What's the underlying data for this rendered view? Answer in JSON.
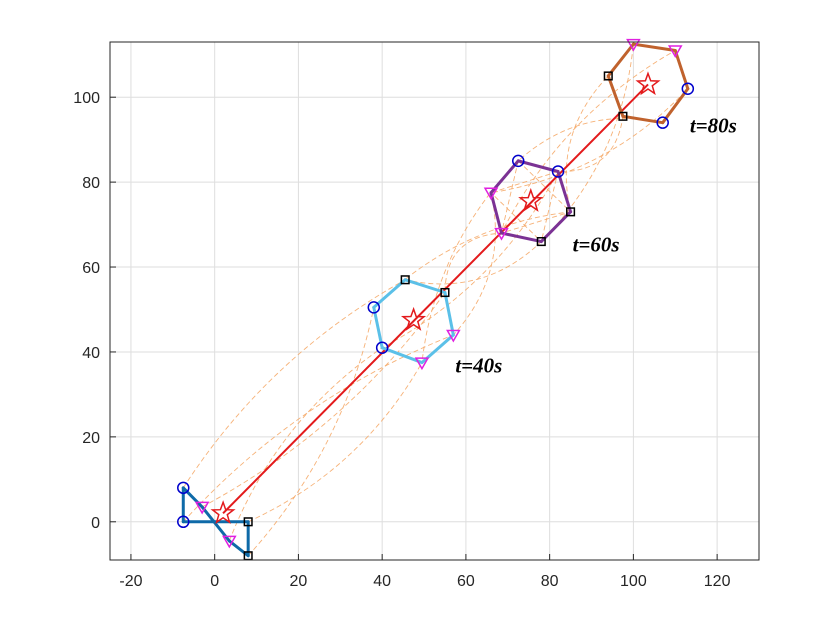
{
  "chart_data": {
    "type": "line",
    "title": "",
    "xlabel": "",
    "ylabel": "",
    "xlim": [
      -25,
      130
    ],
    "ylim": [
      -9,
      113
    ],
    "xticks": [
      "-20",
      "0",
      "20",
      "40",
      "60",
      "80",
      "100",
      "120"
    ],
    "yticks": [
      "0",
      "20",
      "40",
      "60",
      "80",
      "100"
    ],
    "grid": true,
    "colors": {
      "center_path": "#e31a1c",
      "agent_trails": "#f4a460",
      "marker_circle": "#0000cc",
      "marker_square": "#000000",
      "marker_triangle": "#e020e0",
      "star": "#e31a1c"
    },
    "center_path": {
      "x": [
        2,
        103.5
      ],
      "y": [
        2,
        103
      ]
    },
    "formations": [
      {
        "time_label": "",
        "color": "#0e6aa8",
        "center": [
          2,
          2
        ],
        "vertices": [
          [
            -7.5,
            8
          ],
          [
            -3,
            3.5
          ],
          [
            -7.5,
            0
          ],
          [
            8,
            0
          ],
          [
            3.5,
            -4.5
          ],
          [
            8,
            -8
          ]
        ],
        "edges": [
          [
            0,
            1
          ],
          [
            0,
            2
          ],
          [
            2,
            3
          ],
          [
            3,
            5
          ],
          [
            5,
            4
          ],
          [
            4,
            1
          ]
        ],
        "markers": [
          "circle",
          "triangle",
          "circle",
          "square",
          "triangle",
          "square"
        ]
      },
      {
        "time_label": "t=40s",
        "color": "#5bc0e8",
        "center": [
          47.5,
          47.5
        ],
        "vertices": [
          [
            38,
            50.5
          ],
          [
            45.5,
            57
          ],
          [
            55,
            54
          ],
          [
            57,
            44
          ],
          [
            49.5,
            37.5
          ],
          [
            40,
            41
          ]
        ],
        "edges": [
          [
            0,
            1
          ],
          [
            1,
            2
          ],
          [
            2,
            3
          ],
          [
            3,
            4
          ],
          [
            4,
            5
          ],
          [
            5,
            0
          ]
        ],
        "markers": [
          "circle",
          "square",
          "square",
          "triangle",
          "triangle",
          "circle"
        ]
      },
      {
        "time_label": "t=60s",
        "color": "#7b3294",
        "center": [
          75.5,
          75.5
        ],
        "vertices": [
          [
            72.5,
            85
          ],
          [
            82,
            82.5
          ],
          [
            85,
            73
          ],
          [
            78,
            66
          ],
          [
            68.5,
            68
          ],
          [
            66,
            77.5
          ]
        ],
        "edges": [
          [
            0,
            1
          ],
          [
            1,
            2
          ],
          [
            2,
            3
          ],
          [
            3,
            4
          ],
          [
            4,
            5
          ],
          [
            5,
            0
          ]
        ],
        "markers": [
          "circle",
          "circle",
          "square",
          "square",
          "triangle",
          "triangle"
        ]
      },
      {
        "time_label": "t=80s",
        "color": "#c0622d",
        "center": [
          103.5,
          103
        ],
        "vertices": [
          [
            100,
            112.5
          ],
          [
            110,
            111
          ],
          [
            113,
            102
          ],
          [
            107,
            94
          ],
          [
            97.5,
            95.5
          ],
          [
            94,
            105
          ]
        ],
        "edges": [
          [
            0,
            1
          ],
          [
            1,
            2
          ],
          [
            2,
            3
          ],
          [
            3,
            4
          ],
          [
            4,
            5
          ],
          [
            5,
            0
          ]
        ],
        "markers": [
          "triangle",
          "triangle",
          "circle",
          "circle",
          "square",
          "square"
        ]
      }
    ]
  }
}
